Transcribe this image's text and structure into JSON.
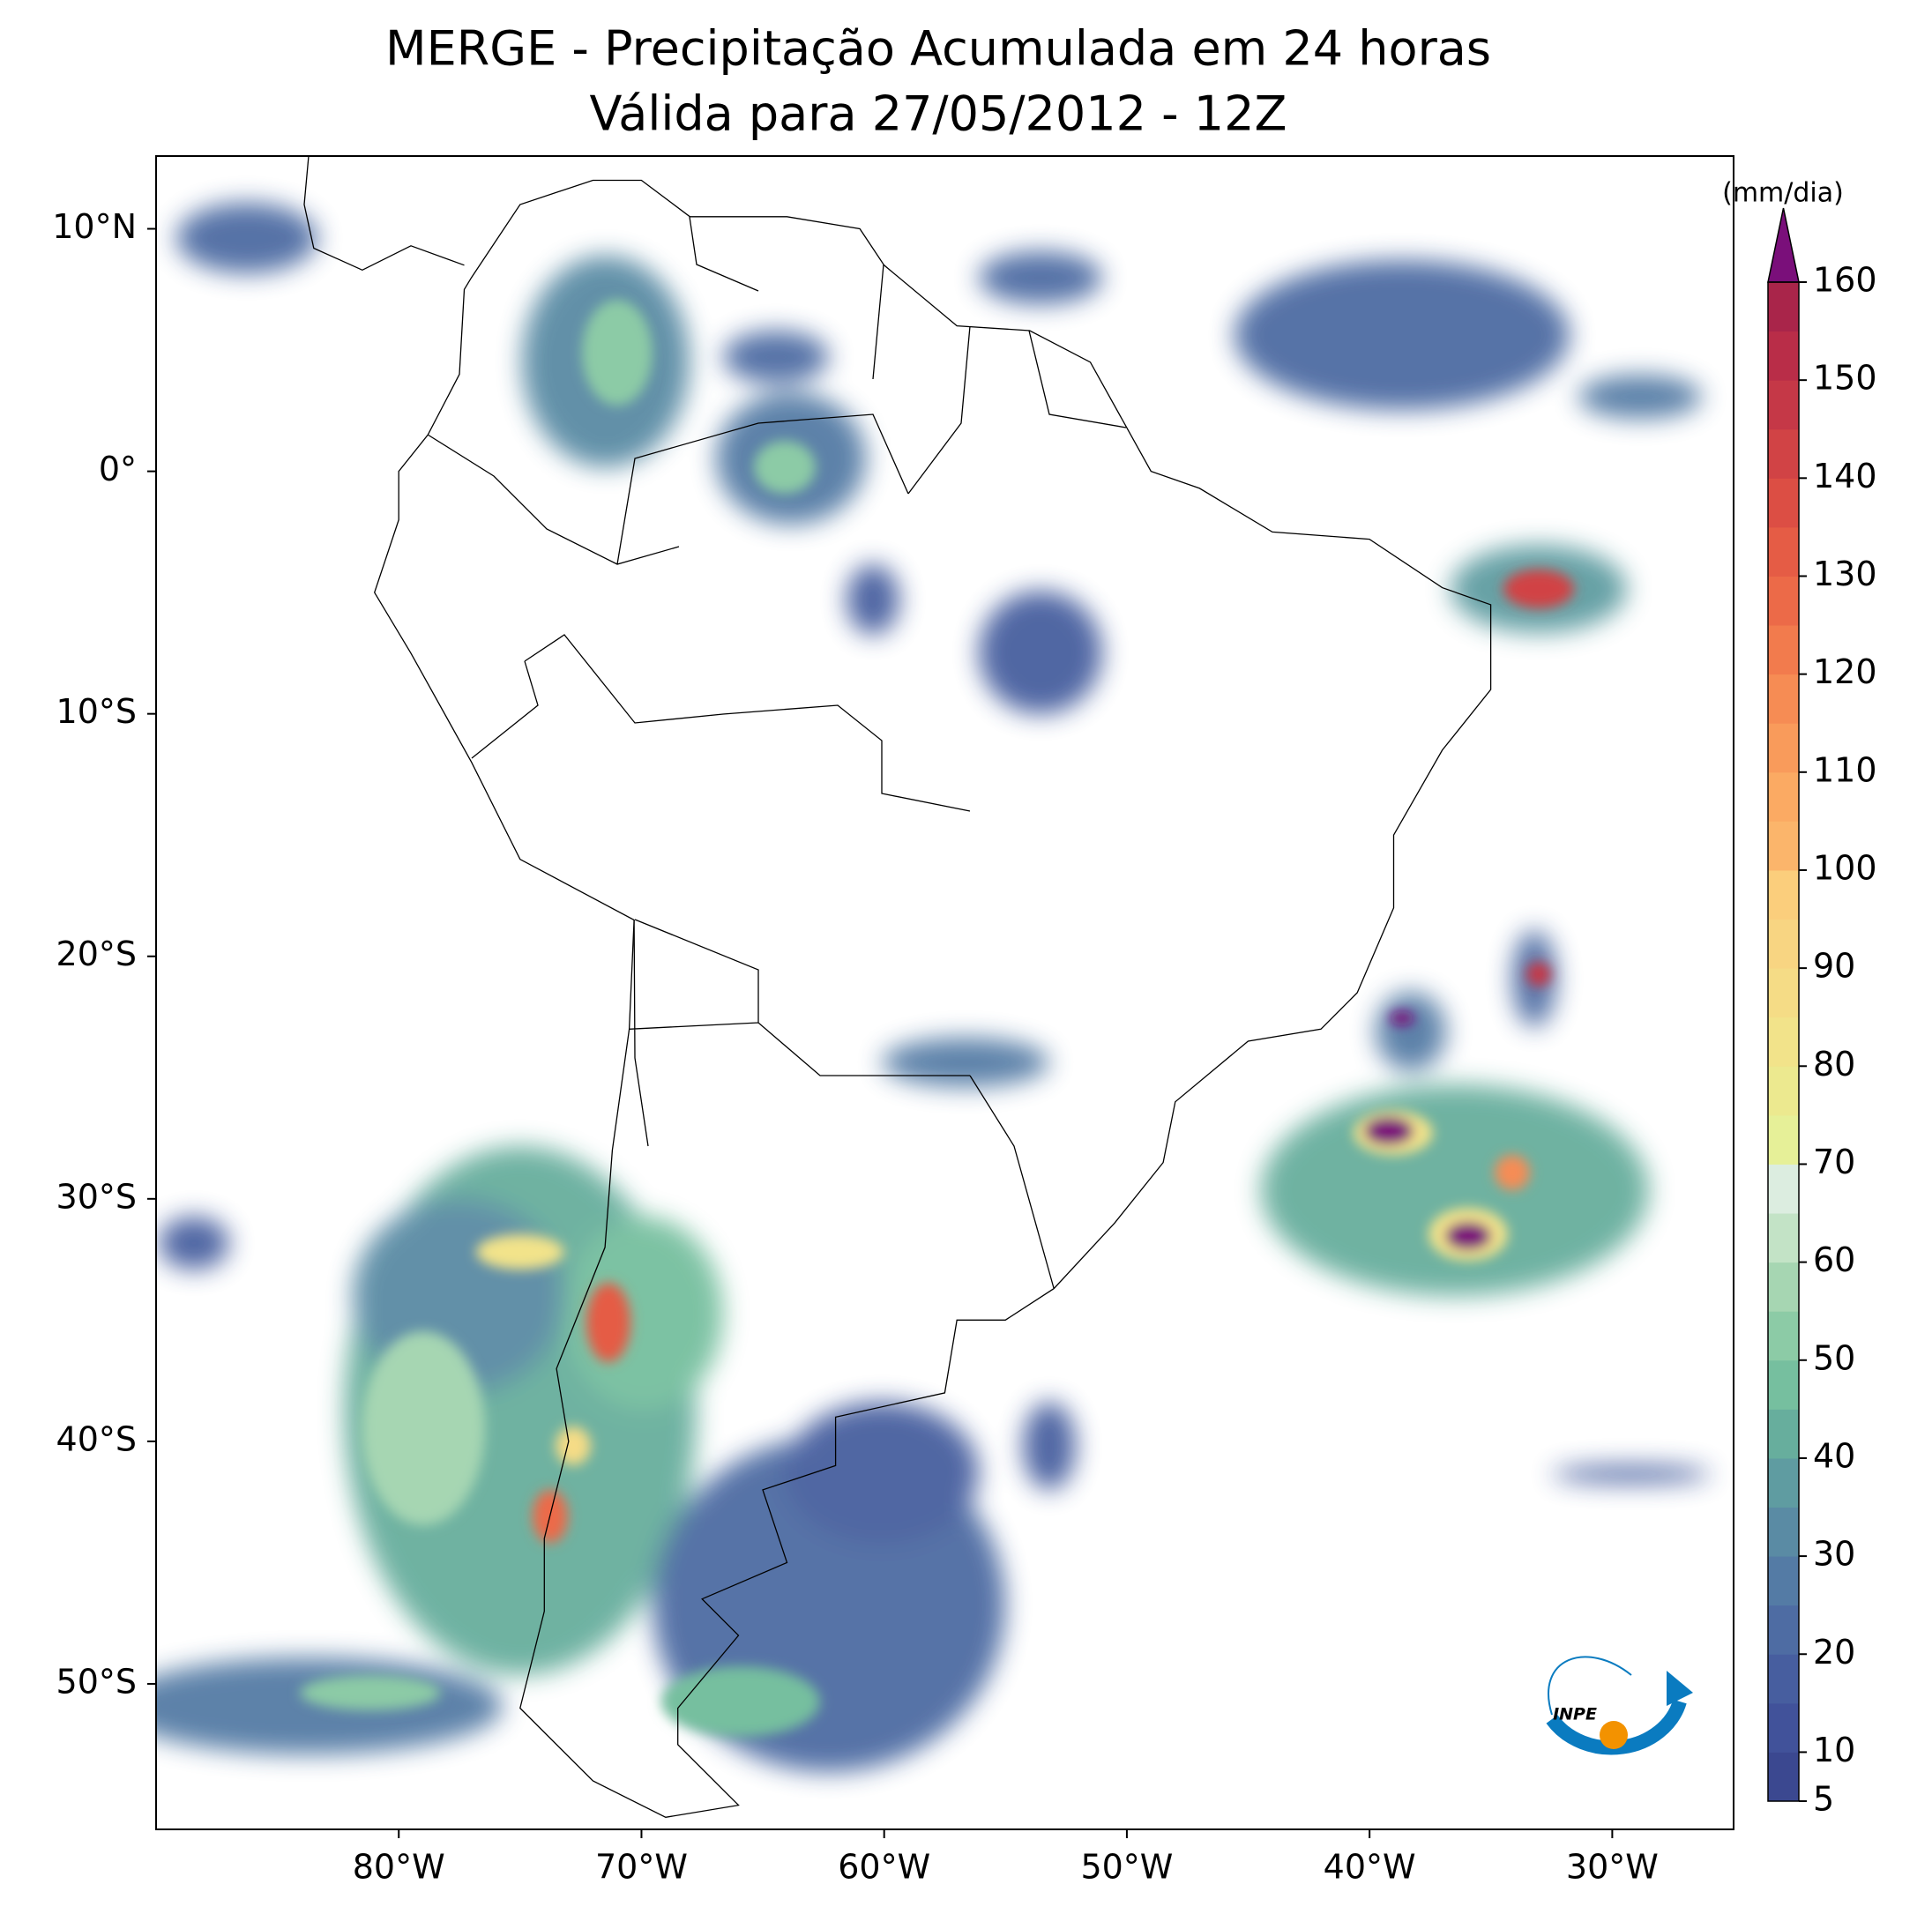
{
  "map": {
    "title": "MERGE - Precipitação Acumulada em 24 horas",
    "subtitle": "Válida para 27/05/2012 - 12Z",
    "xlim": [
      -90,
      -25
    ],
    "ylim": [
      -56,
      13
    ],
    "xticks": [
      {
        "value": -80,
        "label": "80°W"
      },
      {
        "value": -70,
        "label": "70°W"
      },
      {
        "value": -60,
        "label": "60°W"
      },
      {
        "value": -50,
        "label": "50°W"
      },
      {
        "value": -40,
        "label": "40°W"
      },
      {
        "value": -30,
        "label": "30°W"
      }
    ],
    "yticks": [
      {
        "value": 10,
        "label": "10°N"
      },
      {
        "value": 0,
        "label": "0°"
      },
      {
        "value": -10,
        "label": "10°S"
      },
      {
        "value": -20,
        "label": "20°S"
      },
      {
        "value": -30,
        "label": "30°S"
      },
      {
        "value": -40,
        "label": "40°S"
      },
      {
        "value": -50,
        "label": "50°S"
      }
    ],
    "colorbar": {
      "label": "(mm/dia)",
      "levels": [
        5,
        10,
        15,
        20,
        25,
        30,
        35,
        40,
        45,
        50,
        55,
        60,
        65,
        70,
        75,
        80,
        85,
        90,
        95,
        100,
        105,
        110,
        115,
        120,
        125,
        130,
        135,
        140,
        145,
        150,
        155,
        160
      ],
      "colors": [
        "#3b4890",
        "#41529a",
        "#475e9f",
        "#4e6ca3",
        "#547ba5",
        "#5a8ba4",
        "#5f9ca1",
        "#67ae9d",
        "#76bf9f",
        "#8ccba6",
        "#a6d6b2",
        "#c3e3c6",
        "#dcede0",
        "#e6f098",
        "#ece98f",
        "#f2e38a",
        "#f5dc86",
        "#f8d582",
        "#fbce7c",
        "#fbb56b",
        "#fbaa63",
        "#f99b5b",
        "#f68c54",
        "#f27b4d",
        "#ec6a48",
        "#e55c45",
        "#dc4e44",
        "#d14345",
        "#c53847",
        "#b92d48",
        "#a9254a"
      ],
      "extend_color": "#7a0f7a",
      "ticks": [
        5,
        10,
        20,
        30,
        40,
        50,
        60,
        70,
        80,
        90,
        100,
        110,
        120,
        130,
        140,
        150,
        160
      ]
    },
    "logo": "INPE"
  }
}
